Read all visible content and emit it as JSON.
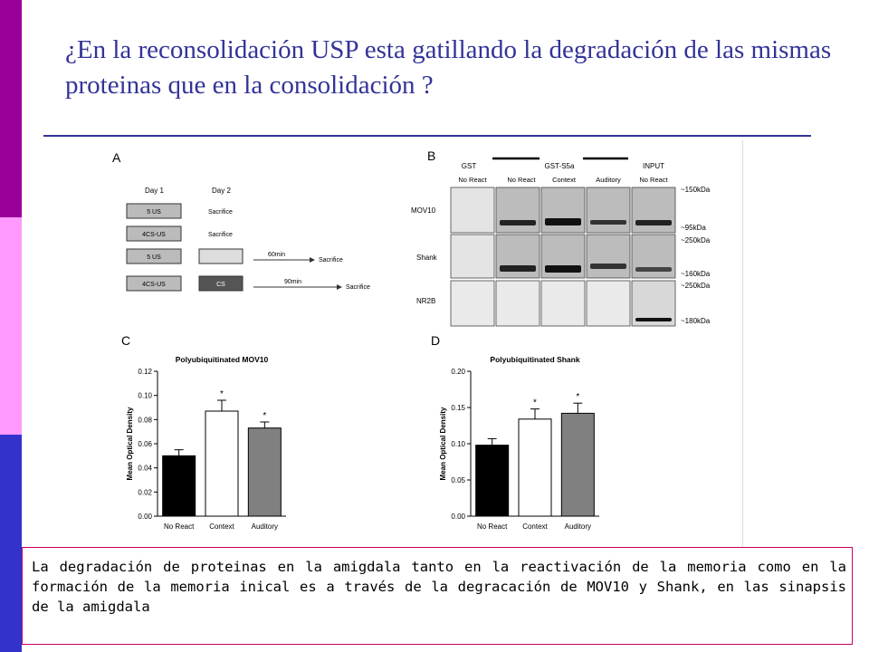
{
  "slide": {
    "title": "¿En la reconsolidación USP esta gatillando la degradación de las mismas proteinas que en la consolidación ?",
    "caption": "La degradación de proteinas en la amigdala tanto en la reactivación de la memoria como en la formación de la memoria inical es a través de la  degracación de MOV10 y Shank, en las sinapsis de la amigdala",
    "sidebar_colors": [
      "#990099",
      "#ff99ff",
      "#3333cc"
    ],
    "accent_color": "#333399"
  },
  "figure": {
    "panel_a": {
      "letter": "A",
      "day1": "Day 1",
      "day2": "Day 2",
      "rows": [
        {
          "day1": "5 US",
          "day2": "Sacrifice"
        },
        {
          "day1": "4CS-US",
          "day2": "Sacrifice"
        },
        {
          "day1": "5 US",
          "day2": "",
          "time": "60min",
          "end": "Sacrifice"
        },
        {
          "day1": "4CS-US",
          "day2": "CS",
          "time": "90min",
          "end": "Sacrifice"
        }
      ]
    },
    "panel_b": {
      "letter": "B",
      "group_gst": "GST",
      "group_gst_s5a": "GST-S5a",
      "group_input": "INPUT",
      "lanes": [
        "No React",
        "No React",
        "Context",
        "Auditory",
        "No React"
      ],
      "rows": [
        "MOV10",
        "Shank",
        "NR2B"
      ],
      "markers": [
        "~150kDa",
        "~95kDa",
        "~250kDa",
        "~160kDa",
        "~250kDa",
        "~180kDa"
      ]
    }
  },
  "chart_data": [
    {
      "panel": "C",
      "type": "bar",
      "title": "Polyubiquitinated MOV10",
      "ylabel": "Mean Optical Density",
      "categories": [
        "No React",
        "Context",
        "Auditory"
      ],
      "values": [
        0.05,
        0.087,
        0.073
      ],
      "errors": [
        0.005,
        0.009,
        0.005
      ],
      "significance": [
        "",
        "*",
        "*"
      ],
      "bar_colors": [
        "#000000",
        "#ffffff",
        "#808080"
      ],
      "ylim": [
        0,
        0.12
      ],
      "yticks": [
        "0.00",
        "0.02",
        "0.04",
        "0.06",
        "0.08",
        "0.10",
        "0.12"
      ]
    },
    {
      "panel": "D",
      "type": "bar",
      "title": "Polyubiquitinated Shank",
      "ylabel": "Mean Optical Density",
      "categories": [
        "No React",
        "Context",
        "Auditory"
      ],
      "values": [
        0.098,
        0.134,
        0.142
      ],
      "errors": [
        0.009,
        0.014,
        0.014
      ],
      "significance": [
        "",
        "*",
        "*"
      ],
      "bar_colors": [
        "#000000",
        "#ffffff",
        "#808080"
      ],
      "ylim": [
        0,
        0.2
      ],
      "yticks": [
        "0.00",
        "0.05",
        "0.10",
        "0.15",
        "0.20"
      ]
    }
  ]
}
